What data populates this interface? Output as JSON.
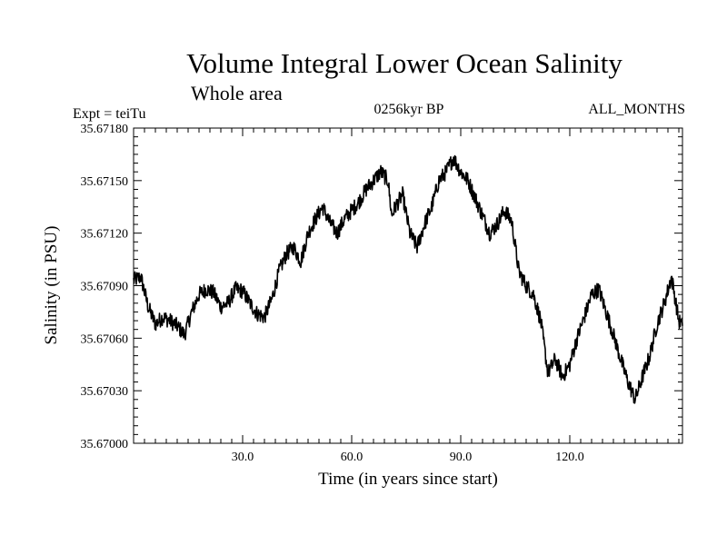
{
  "header": {
    "title": "Volume Integral Lower Ocean Salinity",
    "subtitle": "Whole area",
    "expt": "Expt = teiTu",
    "period": "0256kyr BP",
    "months": "ALL_MONTHS"
  },
  "chart_data": {
    "type": "line",
    "title": "Volume Integral Lower Ocean Salinity",
    "subtitle": "Whole area",
    "xlabel": "Time (in years since start)",
    "ylabel": "Salinity (in PSU)",
    "xlim": [
      0,
      151
    ],
    "ylim": [
      35.67,
      35.6718
    ],
    "xticks": [
      30,
      60,
      90,
      120
    ],
    "xtick_labels": [
      "30.0",
      "60.0",
      "90.0",
      "120.0"
    ],
    "yticks": [
      35.67,
      35.6703,
      35.6706,
      35.6709,
      35.6712,
      35.6715,
      35.6718
    ],
    "ytick_labels": [
      "35.67000",
      "35.67030",
      "35.67060",
      "35.67090",
      "35.67120",
      "35.67150",
      "35.67180"
    ],
    "grid": false,
    "series": [
      {
        "name": "Salinity",
        "x": [
          0,
          2,
          4,
          6,
          8,
          10,
          12,
          14,
          16,
          18,
          20,
          22,
          24,
          26,
          28,
          30,
          32,
          34,
          36,
          38,
          40,
          42,
          44,
          46,
          48,
          50,
          52,
          54,
          56,
          58,
          60,
          62,
          64,
          66,
          68,
          70,
          71,
          72,
          74,
          76,
          78,
          80,
          82,
          84,
          86,
          88,
          90,
          92,
          94,
          96,
          98,
          100,
          102,
          104,
          106,
          108,
          110,
          112,
          114,
          116,
          118,
          120,
          122,
          124,
          126,
          128,
          130,
          132,
          134,
          136,
          138,
          140,
          142,
          144,
          146,
          148,
          150,
          151
        ],
        "y": [
          35.67093,
          35.67095,
          35.67078,
          35.67068,
          35.67072,
          35.6707,
          35.67067,
          35.67062,
          35.67075,
          35.67085,
          35.67088,
          35.67086,
          35.67078,
          35.6708,
          35.67088,
          35.67087,
          35.6708,
          35.67074,
          35.67072,
          35.67082,
          35.67098,
          35.67108,
          35.67112,
          35.67104,
          35.6712,
          35.67128,
          35.67135,
          35.67126,
          35.6712,
          35.67128,
          35.67133,
          35.67138,
          35.67145,
          35.6715,
          35.67155,
          35.6715,
          35.6713,
          35.67135,
          35.67142,
          35.6712,
          35.67112,
          35.67125,
          35.67135,
          35.6715,
          35.67155,
          35.67163,
          35.67155,
          35.6715,
          35.6714,
          35.6713,
          35.6712,
          35.67125,
          35.67133,
          35.67127,
          35.67098,
          35.6709,
          35.67085,
          35.6707,
          35.6704,
          35.67048,
          35.67038,
          35.67045,
          35.6706,
          35.67072,
          35.67085,
          35.67088,
          35.67075,
          35.67062,
          35.67048,
          35.67035,
          35.67025,
          35.67038,
          35.6705,
          35.67068,
          35.6708,
          35.67095,
          35.6707,
          35.67067
        ]
      }
    ]
  }
}
